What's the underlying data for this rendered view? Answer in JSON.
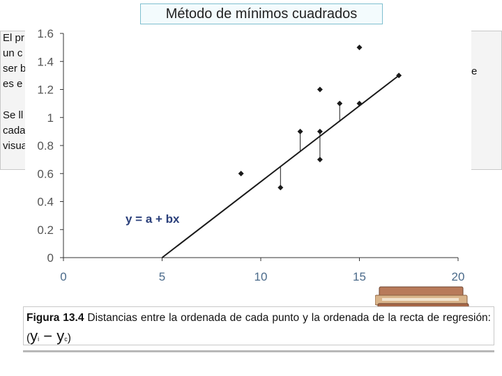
{
  "slide_title": "Método de mínimos cuadrados",
  "background_text": {
    "para1_lines": [
      "El pr",
      "un c",
      "ser b",
      "es e"
    ],
    "right_fragment": "e",
    "para2_lines": [
      "Se ll",
      "cada",
      "visua"
    ]
  },
  "chart_data": {
    "type": "scatter",
    "title": "",
    "xlabel": "",
    "ylabel": "",
    "xlim": [
      0,
      20
    ],
    "ylim": [
      0,
      1.6
    ],
    "x_ticks": [
      0,
      5,
      10,
      15,
      20
    ],
    "y_ticks": [
      0,
      0.2,
      0.4,
      0.6,
      0.8,
      1,
      1.2,
      1.4,
      1.6
    ],
    "x_tick_labels": [
      "0",
      "5",
      "10",
      "15",
      "20"
    ],
    "y_tick_labels": [
      "0",
      "0.2",
      "0.4",
      "0.6",
      "0.8",
      "1",
      "1.2",
      "1.4",
      "1.6"
    ],
    "points": [
      {
        "x": 9,
        "y": 0.6
      },
      {
        "x": 11,
        "y": 0.5
      },
      {
        "x": 12,
        "y": 0.9
      },
      {
        "x": 13,
        "y": 1.2
      },
      {
        "x": 13,
        "y": 0.9
      },
      {
        "x": 13,
        "y": 0.7
      },
      {
        "x": 14,
        "y": 1.1
      },
      {
        "x": 15,
        "y": 1.5
      },
      {
        "x": 15,
        "y": 1.1
      },
      {
        "x": 17,
        "y": 1.3
      }
    ],
    "regression_line": {
      "x_start": 5,
      "y_start": 0,
      "x_end": 17,
      "y_end": 1.3
    },
    "residuals": [
      {
        "x": 11,
        "y_from": 0.5,
        "y_to": 0.65
      },
      {
        "x": 12,
        "y_from": 0.9,
        "y_to": 0.76
      },
      {
        "x": 13,
        "y_from": 0.9,
        "y_to": 0.87
      },
      {
        "x": 13,
        "y_from": 0.7,
        "y_to": 0.87
      },
      {
        "x": 14,
        "y_from": 1.1,
        "y_to": 0.97
      }
    ],
    "equation_label": "y = a + bx",
    "colors": {
      "axis_text": "#555555",
      "x_tick_text": "#4a6a8a",
      "marks": "#1a1a1a",
      "equation": "#2a3f7a"
    }
  },
  "caption": {
    "label": "Figura 13.4",
    "text": " Distancias entre la ordenada de cada punto y la ordenada de la recta de regresión: (",
    "y_i": "y",
    "y_i_sub": "i",
    "minus": " − ",
    "y_c": "y",
    "y_c_sub": "c",
    "close": ")"
  }
}
